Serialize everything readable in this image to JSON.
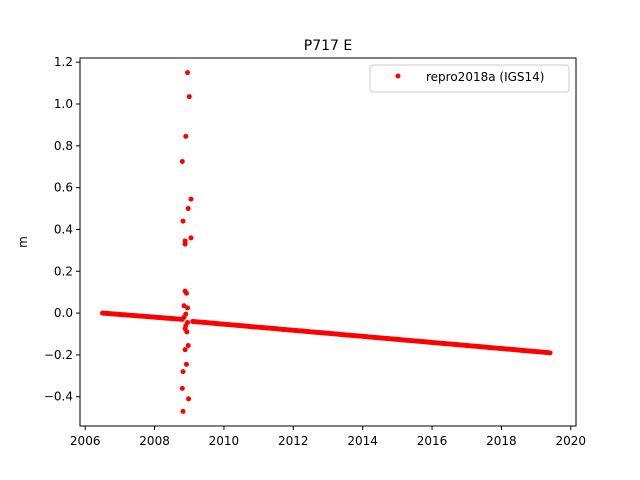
{
  "chart_data": {
    "type": "scatter",
    "title": "P717 E",
    "xlabel": "",
    "ylabel": "m",
    "xlim": [
      2005.85,
      2020.15
    ],
    "ylim": [
      -0.54,
      1.22
    ],
    "xticks": [
      2006,
      2008,
      2010,
      2012,
      2014,
      2016,
      2018,
      2020
    ],
    "xtick_labels": [
      "2006",
      "2008",
      "2010",
      "2012",
      "2014",
      "2016",
      "2018",
      "2020"
    ],
    "yticks": [
      -0.4,
      -0.2,
      0.0,
      0.2,
      0.4,
      0.6,
      0.8,
      1.0,
      1.2
    ],
    "ytick_labels": [
      "−0.4",
      "−0.2",
      "0.0",
      "0.2",
      "0.4",
      "0.6",
      "0.8",
      "1.0",
      "1.2"
    ],
    "grid": false,
    "legend_position": "top-right",
    "series": [
      {
        "name": "repro2018a (IGS14)",
        "color": "#ff0000",
        "marker": "circle",
        "trend_segments": [
          {
            "x_start": 2006.5,
            "x_end": 2008.8,
            "y_start": 0.0,
            "y_end": -0.03,
            "count": 60
          },
          {
            "x_start": 2009.1,
            "x_end": 2019.4,
            "y_start": -0.04,
            "y_end": -0.19,
            "count": 240
          }
        ],
        "outliers": [
          {
            "x": 2008.95,
            "y": 1.15
          },
          {
            "x": 2009.0,
            "y": 1.035
          },
          {
            "x": 2008.9,
            "y": 0.845
          },
          {
            "x": 2008.8,
            "y": 0.725
          },
          {
            "x": 2009.05,
            "y": 0.545
          },
          {
            "x": 2008.97,
            "y": 0.5
          },
          {
            "x": 2008.82,
            "y": 0.44
          },
          {
            "x": 2009.05,
            "y": 0.36
          },
          {
            "x": 2008.88,
            "y": 0.345
          },
          {
            "x": 2008.88,
            "y": 0.33
          },
          {
            "x": 2008.88,
            "y": 0.105
          },
          {
            "x": 2008.92,
            "y": 0.095
          },
          {
            "x": 2008.85,
            "y": 0.035
          },
          {
            "x": 2008.95,
            "y": 0.025
          },
          {
            "x": 2008.9,
            "y": -0.005
          },
          {
            "x": 2008.85,
            "y": -0.02
          },
          {
            "x": 2008.95,
            "y": -0.045
          },
          {
            "x": 2008.9,
            "y": -0.06
          },
          {
            "x": 2008.88,
            "y": -0.075
          },
          {
            "x": 2008.93,
            "y": -0.09
          },
          {
            "x": 2008.97,
            "y": -0.155
          },
          {
            "x": 2008.88,
            "y": -0.175
          },
          {
            "x": 2008.92,
            "y": -0.245
          },
          {
            "x": 2008.82,
            "y": -0.28
          },
          {
            "x": 2008.8,
            "y": -0.36
          },
          {
            "x": 2008.98,
            "y": -0.41
          },
          {
            "x": 2008.82,
            "y": -0.47
          }
        ]
      }
    ]
  }
}
